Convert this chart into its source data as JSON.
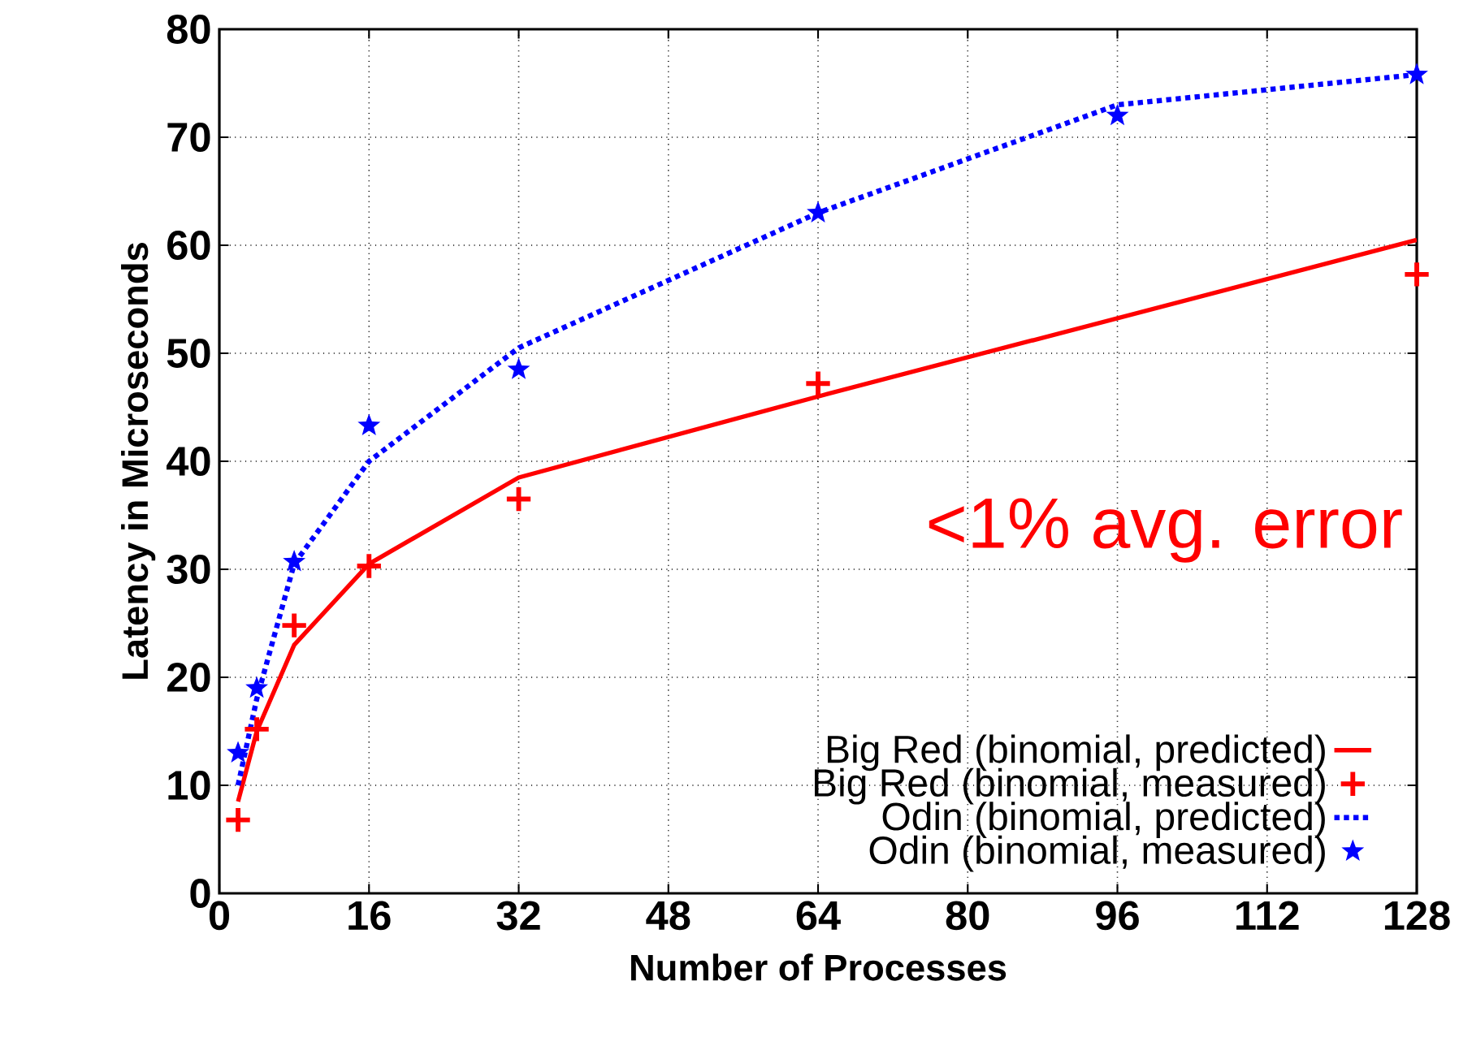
{
  "chart_data": {
    "type": "line",
    "xlabel": "Number of Processes",
    "ylabel": "Latency in Microseconds",
    "xlim": [
      0,
      128
    ],
    "xticks": [
      0,
      16,
      32,
      48,
      64,
      80,
      96,
      112,
      128
    ],
    "ylim": [
      0,
      80
    ],
    "yticks": [
      0,
      10,
      20,
      30,
      40,
      50,
      60,
      70,
      80
    ],
    "grid": true,
    "legend": "bottom right",
    "annotations": [
      "<1% avg. error"
    ],
    "series": [
      {
        "name": "Big Red (binomial, predicted)",
        "color": "#ff0000",
        "line_style": "solid",
        "marker": "none",
        "x": [
          2,
          4,
          8,
          16,
          32,
          64,
          128
        ],
        "values": [
          8.5,
          15,
          23,
          30.5,
          38.5,
          46,
          60.5
        ]
      },
      {
        "name": "Big Red (binomial, measured)",
        "type": "scatter",
        "color": "#ff0000",
        "marker": "cross",
        "x": [
          2,
          4,
          8,
          16,
          32,
          64,
          128
        ],
        "values": [
          6.8,
          15.2,
          24.8,
          30.3,
          36.5,
          47.2,
          57.3
        ]
      },
      {
        "name": "Odin (binomial, predicted)",
        "color": "#0000ff",
        "line_style": "dotted",
        "marker": "none",
        "x": [
          2,
          4,
          8,
          16,
          32,
          64,
          96,
          128
        ],
        "values": [
          10,
          18,
          30.5,
          40,
          50.5,
          63,
          73,
          75.8
        ]
      },
      {
        "name": "Odin (binomial, measured)",
        "type": "scatter",
        "color": "#0000ff",
        "marker": "star",
        "x": [
          2,
          4,
          8,
          16,
          32,
          64,
          96,
          128
        ],
        "values": [
          13,
          19,
          30.7,
          43.3,
          48.5,
          63,
          72,
          75.8
        ]
      }
    ]
  }
}
